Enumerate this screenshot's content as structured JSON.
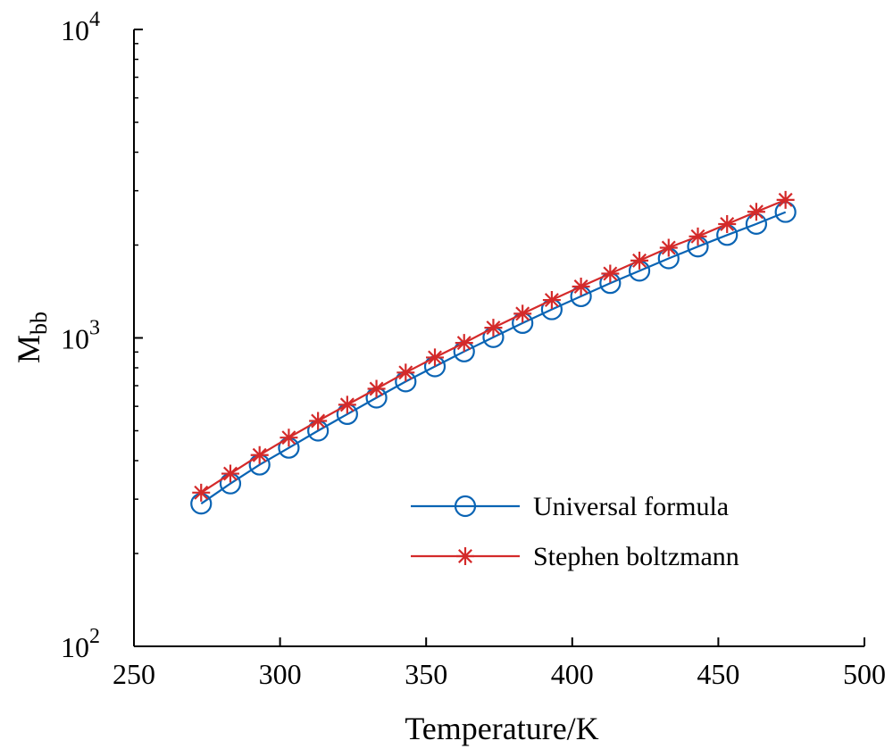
{
  "chart_data": {
    "type": "line",
    "xlabel": "Temperature/K",
    "ylabel": {
      "base": "M",
      "subscript": "bb"
    },
    "xlim": [
      250,
      500
    ],
    "ylim": [
      100,
      10000
    ],
    "yscale": "log",
    "x_ticks": [
      250,
      300,
      350,
      400,
      450,
      500
    ],
    "x_tick_labels": [
      "250",
      "300",
      "350",
      "400",
      "450",
      "500"
    ],
    "y_ticks": [
      {
        "value": 100,
        "base": "10",
        "exp": "2"
      },
      {
        "value": 1000,
        "base": "10",
        "exp": "3"
      },
      {
        "value": 10000,
        "base": "10",
        "exp": "4"
      }
    ],
    "grid": false,
    "legend_position": "lower-right",
    "x": [
      273,
      283,
      293,
      303,
      313,
      323,
      333,
      343,
      353,
      363,
      373,
      383,
      393,
      403,
      413,
      423,
      433,
      443,
      453,
      463,
      473
    ],
    "series": [
      {
        "name": "Universal formula",
        "color": "#0a64b4",
        "marker": "circle",
        "values": [
          290,
          337,
          388,
          440,
          500,
          566,
          640,
          722,
          808,
          903,
          1005,
          1117,
          1237,
          1364,
          1505,
          1650,
          1810,
          1977,
          2155,
          2341,
          2558
        ]
      },
      {
        "name": "Stephen boltzmann",
        "color": "#d42a2a",
        "marker": "asterisk",
        "values": [
          315,
          363,
          417,
          475,
          538,
          607,
          684,
          772,
          864,
          963,
          1079,
          1198,
          1327,
          1467,
          1616,
          1781,
          1960,
          2133,
          2339,
          2563,
          2802
        ]
      }
    ]
  }
}
